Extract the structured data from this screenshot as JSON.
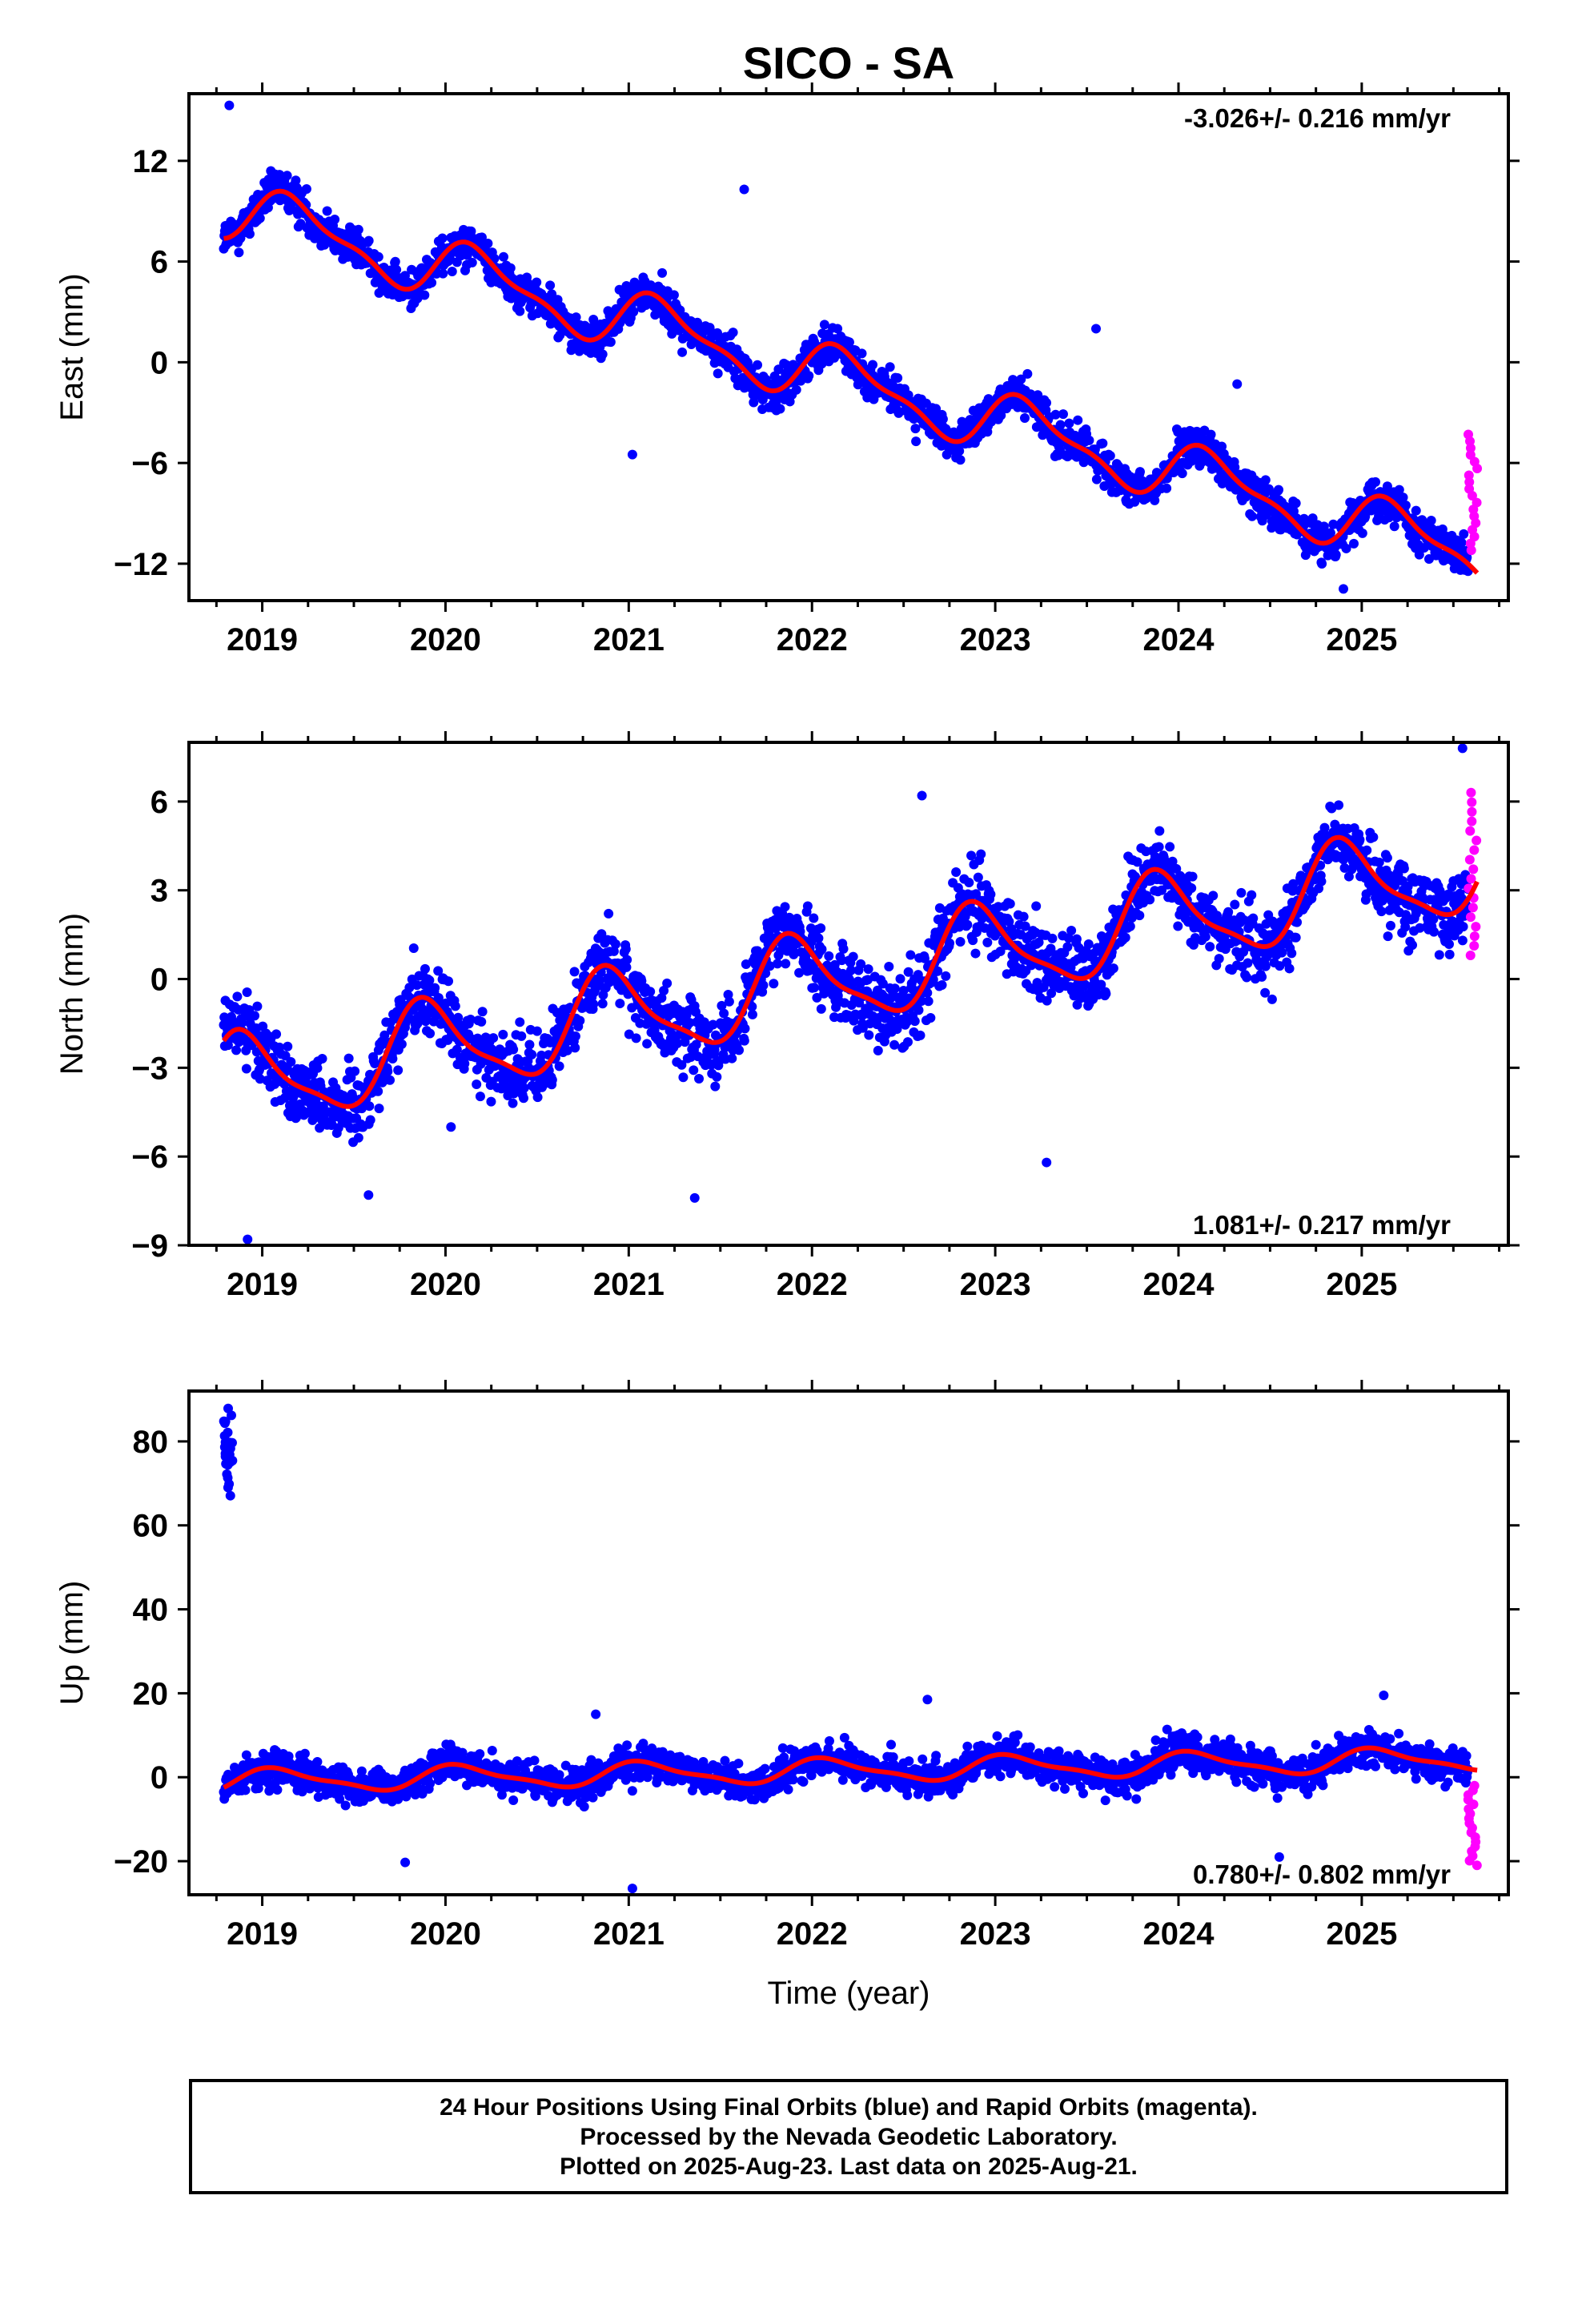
{
  "chart_data": {
    "type": "scatter",
    "title": "SICO - SA",
    "xlabel": "Time (year)",
    "x_tick_labels": [
      "2019",
      "2020",
      "2021",
      "2022",
      "2023",
      "2024",
      "2025"
    ],
    "xlim": [
      2018.6,
      2025.8
    ],
    "colors": {
      "final_orbits": "#0000ff",
      "rapid_orbits": "#ff00ff",
      "model": "#ff0000"
    },
    "panels": [
      {
        "name": "east",
        "ylabel": "East (mm)",
        "ylim": [
          -14.2,
          16
        ],
        "y_ticks": [
          12,
          6,
          0,
          -6,
          -12
        ],
        "rate_label": "-3.026+/- 0.216 mm/yr",
        "rate_position": "top-right",
        "trend_start": 9.2,
        "rate": -3.026,
        "seasonal_annual": 1.6,
        "seasonal_semiannual": 0.6,
        "phase": 0.4,
        "noise": 1.0,
        "outliers": [
          [
            2018.82,
            15.3
          ],
          [
            2021.63,
            10.3
          ],
          [
            2021.02,
            -5.5
          ],
          [
            2024.9,
            -13.5
          ],
          [
            2023.55,
            2.0
          ],
          [
            2024.32,
            -1.3
          ]
        ],
        "series": [
          {
            "name": "Final Orbits (blue)",
            "x_range": [
              2018.79,
              2025.58
            ],
            "count": 2300
          },
          {
            "name": "Rapid Orbits (magenta)",
            "x_range": [
              2025.58,
              2025.63
            ],
            "y_range": [
              -11.2,
              -4.3
            ],
            "count": 18
          }
        ]
      },
      {
        "name": "north",
        "ylabel": "North (mm)",
        "ylim": [
          -9,
          8
        ],
        "y_ticks": [
          6,
          3,
          0,
          -3,
          -6,
          -9
        ],
        "rate_label": "1.081+/- 0.217 mm/yr",
        "rate_position": "bottom-right",
        "trend_start": -3.6,
        "rate": 1.081,
        "seasonal_annual": 1.5,
        "seasonal_semiannual": 0.4,
        "phase": 2.2,
        "noise": 1.1,
        "outliers": [
          [
            2022.6,
            6.2
          ],
          [
            2023.28,
            -6.2
          ],
          [
            2021.36,
            -7.4
          ],
          [
            2018.92,
            -8.8
          ],
          [
            2019.58,
            -7.3
          ],
          [
            2020.03,
            -5.0
          ],
          [
            2025.55,
            7.8
          ]
        ],
        "series": [
          {
            "name": "Final Orbits (blue)",
            "x_range": [
              2018.79,
              2025.58
            ],
            "count": 2300
          },
          {
            "name": "Rapid Orbits (magenta)",
            "x_range": [
              2025.58,
              2025.63
            ],
            "y_range": [
              0.8,
              6.3
            ],
            "count": 18
          }
        ]
      },
      {
        "name": "up",
        "ylabel": "Up (mm)",
        "ylim": [
          -28,
          92
        ],
        "y_ticks": [
          80,
          60,
          40,
          20,
          0,
          -20
        ],
        "rate_label": "0.780+/- 0.802 mm/yr",
        "rate_position": "bottom-right",
        "trend_start": -1.0,
        "rate": 0.78,
        "seasonal_annual": 2.6,
        "seasonal_semiannual": 0.8,
        "phase": 1.0,
        "noise": 3.6,
        "outlier_cluster": {
          "x_range": [
            2018.79,
            2018.84
          ],
          "y_range": [
            67,
            88
          ],
          "count": 28
        },
        "outliers": [
          [
            2021.02,
            -26.5
          ],
          [
            2022.63,
            18.5
          ],
          [
            2025.12,
            19.5
          ],
          [
            2019.78,
            -20.3
          ],
          [
            2020.82,
            15.0
          ],
          [
            2024.55,
            -19.0
          ]
        ],
        "series": [
          {
            "name": "Final Orbits (blue)",
            "x_range": [
              2018.79,
              2025.58
            ],
            "count": 2300
          },
          {
            "name": "Rapid Orbits (magenta)",
            "x_range": [
              2025.58,
              2025.63
            ],
            "y_range": [
              -21,
              -2
            ],
            "count": 18
          }
        ]
      }
    ]
  },
  "footer": {
    "line1": "24 Hour Positions Using Final Orbits (blue) and Rapid Orbits (magenta).",
    "line2": "Processed by the Nevada Geodetic Laboratory.",
    "line3": "Plotted on 2025-Aug-23. Last data on 2025-Aug-21."
  }
}
